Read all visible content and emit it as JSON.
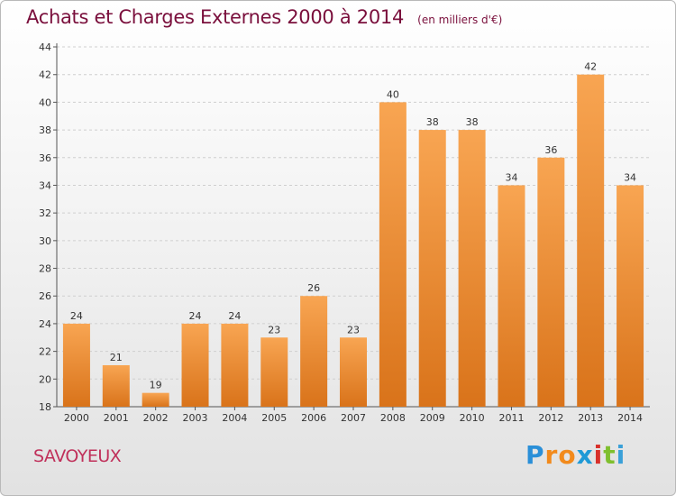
{
  "title": "Achats et Charges Externes 2000 à 2014",
  "unit": "(en milliers d'€)",
  "commune": "SAVOYEUX",
  "logo": {
    "letters": [
      "P",
      "r",
      "o",
      "x",
      "i",
      "t",
      "i"
    ],
    "colors": [
      "#2a8fd8",
      "#f28a1c",
      "#f28a1c",
      "#1f9ad6",
      "#d8312b",
      "#7fbf2e",
      "#3aa0d8"
    ]
  },
  "colors": {
    "bar": "#f59b45",
    "bar_dark": "#d9731a",
    "title": "#7a0f3c",
    "commune": "#c0305a",
    "grid": "#cfcfcf"
  },
  "chart_data": {
    "type": "bar",
    "categories": [
      "2000",
      "2001",
      "2002",
      "2003",
      "2004",
      "2005",
      "2006",
      "2007",
      "2008",
      "2009",
      "2010",
      "2011",
      "2012",
      "2013",
      "2014"
    ],
    "values": [
      24,
      21,
      19,
      24,
      24,
      23,
      26,
      23,
      40,
      38,
      38,
      34,
      36,
      42,
      34
    ],
    "yticks": [
      18,
      20,
      22,
      24,
      26,
      28,
      30,
      32,
      34,
      36,
      38,
      40,
      42,
      44
    ],
    "ylim": [
      18,
      44
    ],
    "grid": "horizontal dashed"
  }
}
